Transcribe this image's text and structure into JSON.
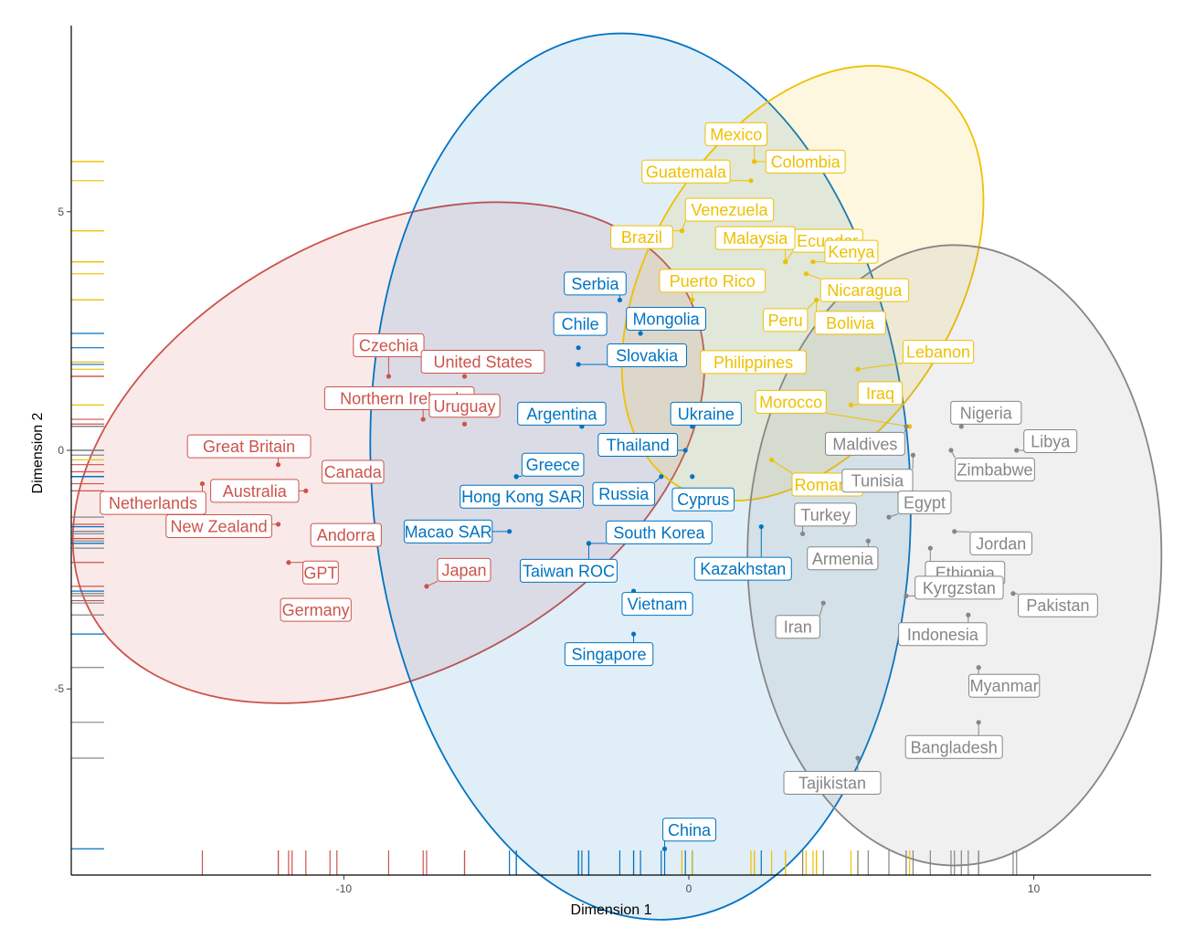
{
  "chart_data": {
    "type": "scatter",
    "title": "",
    "xlabel": "Dimension 1",
    "ylabel": "Dimension 2",
    "xlim": [
      -17.9,
      13.4
    ],
    "ylim": [
      -8.9,
      8.9
    ],
    "x_ticks": [
      -10,
      0,
      10
    ],
    "x_tick_labels": [
      "-10",
      "0",
      "10"
    ],
    "y_ticks": [
      -5,
      0,
      5
    ],
    "y_tick_labels": [
      "-5",
      "0",
      "5"
    ],
    "grid": false,
    "legend": "none",
    "rug": true,
    "colors": {
      "red": "#cd534c",
      "blue": "#0073c2",
      "yellow": "#efc000",
      "gray": "#868686"
    },
    "ellipses": [
      {
        "group": "red",
        "cx": -8.7,
        "cy": -0.05,
        "rx": 9.8,
        "ry": 4.6,
        "angle_deg": -28
      },
      {
        "group": "blue",
        "cx": -1.4,
        "cy": -0.55,
        "rx": 7.8,
        "ry": 9.3,
        "angle_deg": -4
      },
      {
        "group": "yellow",
        "cx": 3.3,
        "cy": 3.5,
        "rx": 6.9,
        "ry": 3.2,
        "angle_deg": -58
      },
      {
        "group": "gray",
        "cx": 7.7,
        "cy": -2.2,
        "rx": 6.0,
        "ry": 6.5,
        "angle_deg": 0
      }
    ],
    "series": [
      {
        "group": "red",
        "points": [
          {
            "label": "Czechia",
            "x": -8.7,
            "y": 1.55
          },
          {
            "label": "United States",
            "x": -6.5,
            "y": 1.55
          },
          {
            "label": "Northern Ireland",
            "x": -7.7,
            "y": 0.65
          },
          {
            "label": "Uruguay",
            "x": -6.5,
            "y": 0.55
          },
          {
            "label": "Great Britain",
            "x": -11.9,
            "y": -0.3
          },
          {
            "label": "Canada",
            "x": -10.4,
            "y": -0.45
          },
          {
            "label": "Australia",
            "x": -11.1,
            "y": -0.85
          },
          {
            "label": "Netherlands",
            "x": -14.1,
            "y": -0.7
          },
          {
            "label": "Andorra",
            "x": -10.2,
            "y": -1.85
          },
          {
            "label": "New Zealand",
            "x": -11.9,
            "y": -1.55
          },
          {
            "label": "GPT",
            "x": -11.6,
            "y": -2.35
          },
          {
            "label": "Germany",
            "x": -11.5,
            "y": -3.15
          },
          {
            "label": "Japan",
            "x": -7.6,
            "y": -2.85
          }
        ]
      },
      {
        "group": "blue",
        "points": [
          {
            "label": "Serbia",
            "x": -2.0,
            "y": 3.15
          },
          {
            "label": "Chile",
            "x": -3.2,
            "y": 2.15
          },
          {
            "label": "Mongolia",
            "x": -1.4,
            "y": 2.45
          },
          {
            "label": "Slovakia",
            "x": -3.2,
            "y": 1.8
          },
          {
            "label": "Argentina",
            "x": -3.1,
            "y": 0.5
          },
          {
            "label": "Ukraine",
            "x": 0.1,
            "y": 0.5
          },
          {
            "label": "Thailand",
            "x": -0.1,
            "y": 0.0
          },
          {
            "label": "Greece",
            "x": -5.0,
            "y": -0.55
          },
          {
            "label": "Russia",
            "x": -0.8,
            "y": -0.55
          },
          {
            "label": "Cyprus",
            "x": 0.1,
            "y": -0.55
          },
          {
            "label": "Hong Kong SAR",
            "x": -5.0,
            "y": -0.55
          },
          {
            "label": "Macao SAR",
            "x": -5.2,
            "y": -1.7
          },
          {
            "label": "South Korea",
            "x": -2.9,
            "y": -1.95
          },
          {
            "label": "Taiwan ROC",
            "x": -2.9,
            "y": -1.95
          },
          {
            "label": "Kazakhstan",
            "x": 2.1,
            "y": -1.6
          },
          {
            "label": "Vietnam",
            "x": -1.6,
            "y": -2.95
          },
          {
            "label": "Singapore",
            "x": -1.6,
            "y": -3.85
          },
          {
            "label": "China",
            "x": -0.7,
            "y": -8.35
          }
        ]
      },
      {
        "group": "yellow",
        "points": [
          {
            "label": "Mexico",
            "x": 1.9,
            "y": 6.05
          },
          {
            "label": "Colombia",
            "x": 1.9,
            "y": 6.05
          },
          {
            "label": "Guatemala",
            "x": 1.8,
            "y": 5.65
          },
          {
            "label": "Venezuela",
            "x": -0.2,
            "y": 4.6
          },
          {
            "label": "Brazil",
            "x": -0.2,
            "y": 4.6
          },
          {
            "label": "Ecuador",
            "x": 2.8,
            "y": 3.95
          },
          {
            "label": "Malaysia",
            "x": 2.8,
            "y": 3.95
          },
          {
            "label": "Kenya",
            "x": 3.6,
            "y": 3.95
          },
          {
            "label": "Nicaragua",
            "x": 3.4,
            "y": 3.7
          },
          {
            "label": "Puerto Rico",
            "x": 0.1,
            "y": 3.15
          },
          {
            "label": "Peru",
            "x": 3.7,
            "y": 3.15
          },
          {
            "label": "Bolivia",
            "x": 3.7,
            "y": 3.15
          },
          {
            "label": "Philippines",
            "x": 3.3,
            "y": 1.85
          },
          {
            "label": "Lebanon",
            "x": 4.9,
            "y": 1.7
          },
          {
            "label": "Iraq",
            "x": 4.7,
            "y": 0.95
          },
          {
            "label": "Morocco",
            "x": 6.4,
            "y": 0.5
          },
          {
            "label": "Romania",
            "x": 2.4,
            "y": -0.2
          }
        ]
      },
      {
        "group": "gray",
        "points": [
          {
            "label": "Nigeria",
            "x": 7.9,
            "y": 0.5
          },
          {
            "label": "Libya",
            "x": 9.5,
            "y": 0.0
          },
          {
            "label": "Maldives",
            "x": 6.3,
            "y": 0.5
          },
          {
            "label": "Tunisia",
            "x": 6.5,
            "y": -0.1
          },
          {
            "label": "Zimbabwe",
            "x": 7.6,
            "y": 0.0
          },
          {
            "label": "Turkey",
            "x": 3.3,
            "y": -1.75
          },
          {
            "label": "Egypt",
            "x": 5.8,
            "y": -1.4
          },
          {
            "label": "Jordan",
            "x": 7.7,
            "y": -1.7
          },
          {
            "label": "Armenia",
            "x": 5.2,
            "y": -1.9
          },
          {
            "label": "Ethiopia",
            "x": 7.0,
            "y": -2.05
          },
          {
            "label": "Pakistan",
            "x": 9.4,
            "y": -3.0
          },
          {
            "label": "Kyrgzstan",
            "x": 6.3,
            "y": -3.05
          },
          {
            "label": "Iran",
            "x": 3.9,
            "y": -3.2
          },
          {
            "label": "Indonesia",
            "x": 8.1,
            "y": -3.45
          },
          {
            "label": "Myanmar",
            "x": 8.4,
            "y": -4.55
          },
          {
            "label": "Bangladesh",
            "x": 8.4,
            "y": -5.7
          },
          {
            "label": "Tajikistan",
            "x": 4.9,
            "y": -6.45
          }
        ]
      }
    ]
  }
}
